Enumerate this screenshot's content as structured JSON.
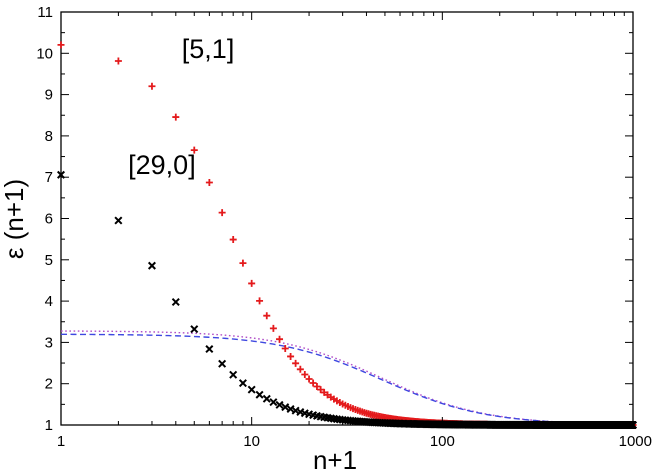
{
  "chart_data": {
    "type": "scatter",
    "title": "",
    "xlabel": "n+1",
    "ylabel": "ε (n+1)",
    "xscale": "log",
    "xlim": [
      1,
      1000
    ],
    "ylim": [
      1,
      11
    ],
    "grid": false,
    "x_ticks": [
      {
        "value": 1,
        "label": "1"
      },
      {
        "value": 10,
        "label": "10"
      },
      {
        "value": 100,
        "label": "100"
      },
      {
        "value": 1000,
        "label": "1000"
      }
    ],
    "y_ticks": [
      {
        "value": 1,
        "label": "1"
      },
      {
        "value": 2,
        "label": "2"
      },
      {
        "value": 3,
        "label": "3"
      },
      {
        "value": 4,
        "label": "4"
      },
      {
        "value": 5,
        "label": "5"
      },
      {
        "value": 6,
        "label": "6"
      },
      {
        "value": 7,
        "label": "7"
      },
      {
        "value": 8,
        "label": "8"
      },
      {
        "value": 9,
        "label": "9"
      },
      {
        "value": 10,
        "label": "10"
      },
      {
        "value": 11,
        "label": "11"
      }
    ],
    "annotations": [
      {
        "text": "[5,1]",
        "x": 4.3,
        "y": 10.1
      },
      {
        "text": "[29,0]",
        "x": 2.25,
        "y": 7.3
      }
    ],
    "series": [
      {
        "name": "[5,1]",
        "marker": "plus",
        "color": "#e41a1c",
        "model": {
          "E0": 10.33,
          "E1": 1.0,
          "n0": 7.72,
          "p": 2.1
        },
        "x_range": [
          1,
          1000
        ]
      },
      {
        "name": "[29,0]",
        "marker": "cross",
        "color": "#000000",
        "model": {
          "E0": 7.62,
          "E1": 1.0,
          "n0": 3.59,
          "p": 1.86
        },
        "x_range": [
          1,
          1000
        ]
      },
      {
        "name": "dotted",
        "style": "dotted",
        "color": "#b04ec8",
        "model": {
          "E0": 3.28,
          "E1": 1.0,
          "n0": 48,
          "p": 1.6
        },
        "x_range": [
          1,
          1000
        ]
      },
      {
        "name": "dashed",
        "style": "dashed",
        "color": "#3f48e0",
        "model": {
          "E0": 3.2,
          "E1": 1.0,
          "n0": 48,
          "p": 1.6
        },
        "x_range": [
          1,
          1000
        ]
      }
    ]
  }
}
